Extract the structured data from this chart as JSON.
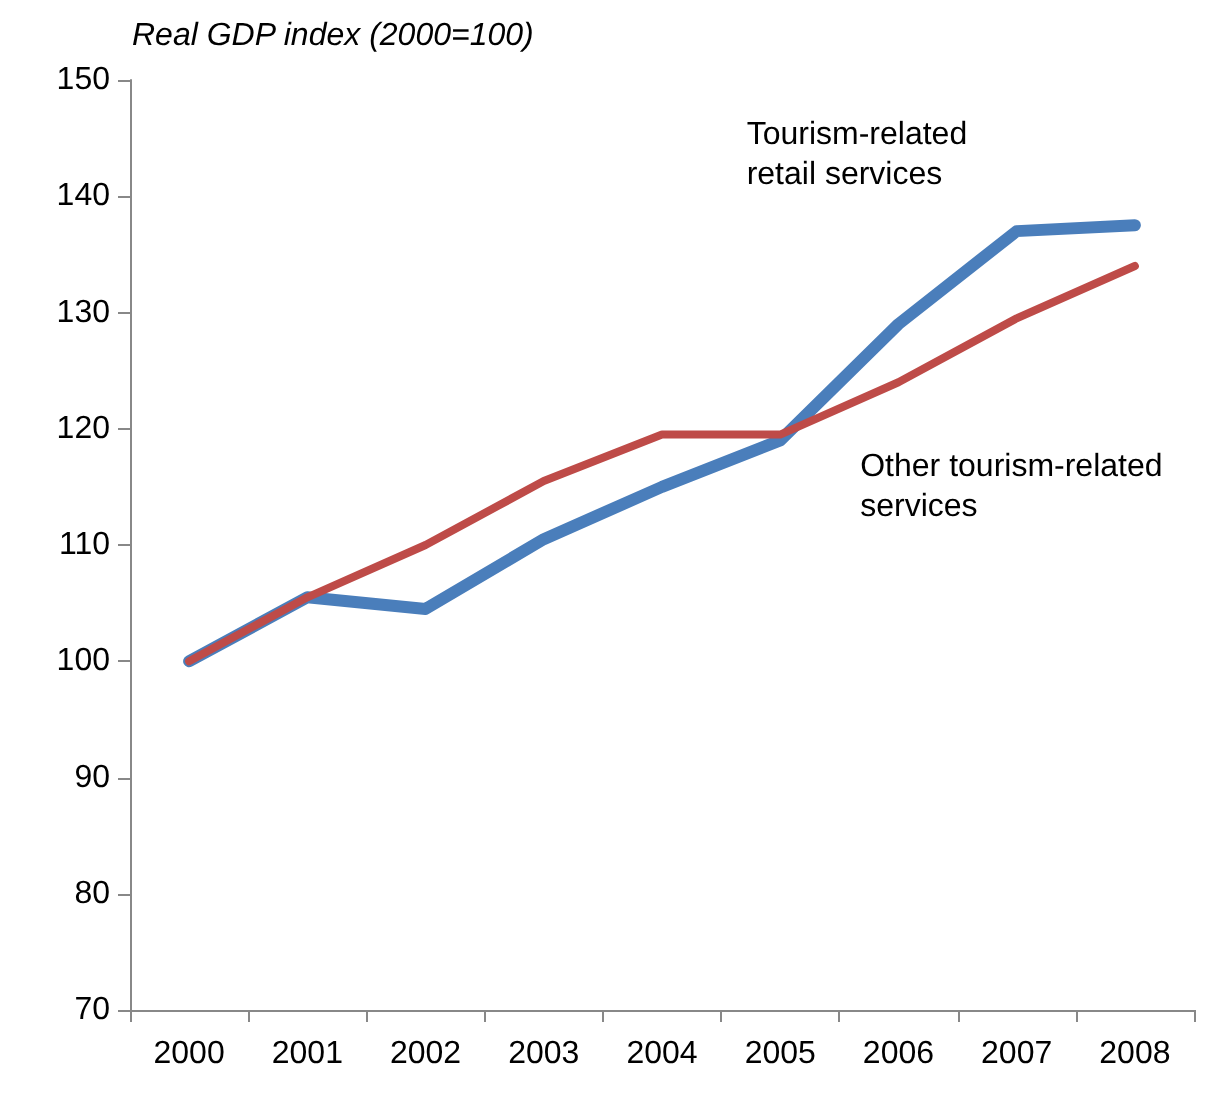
{
  "chart_data": {
    "type": "line",
    "ylabel": "Real GDP index (2000=100)",
    "categories": [
      "2000",
      "2001",
      "2002",
      "2003",
      "2004",
      "2005",
      "2006",
      "2007",
      "2008"
    ],
    "series": [
      {
        "name": "Tourism-related retail services",
        "color": "#4a7ebb",
        "values": [
          100,
          105.5,
          104.5,
          110.5,
          115,
          119,
          129,
          137,
          137.5
        ]
      },
      {
        "name": "Other tourism-related services",
        "color": "#be4b48",
        "values": [
          100,
          105.5,
          110,
          115.5,
          119.5,
          119.5,
          124,
          129.5,
          134
        ]
      }
    ],
    "ylim": [
      70,
      150
    ],
    "yticks": [
      70,
      80,
      90,
      100,
      110,
      120,
      130,
      140,
      150
    ],
    "grid": false,
    "legend": false,
    "marker": "none",
    "line_style": "solid"
  }
}
